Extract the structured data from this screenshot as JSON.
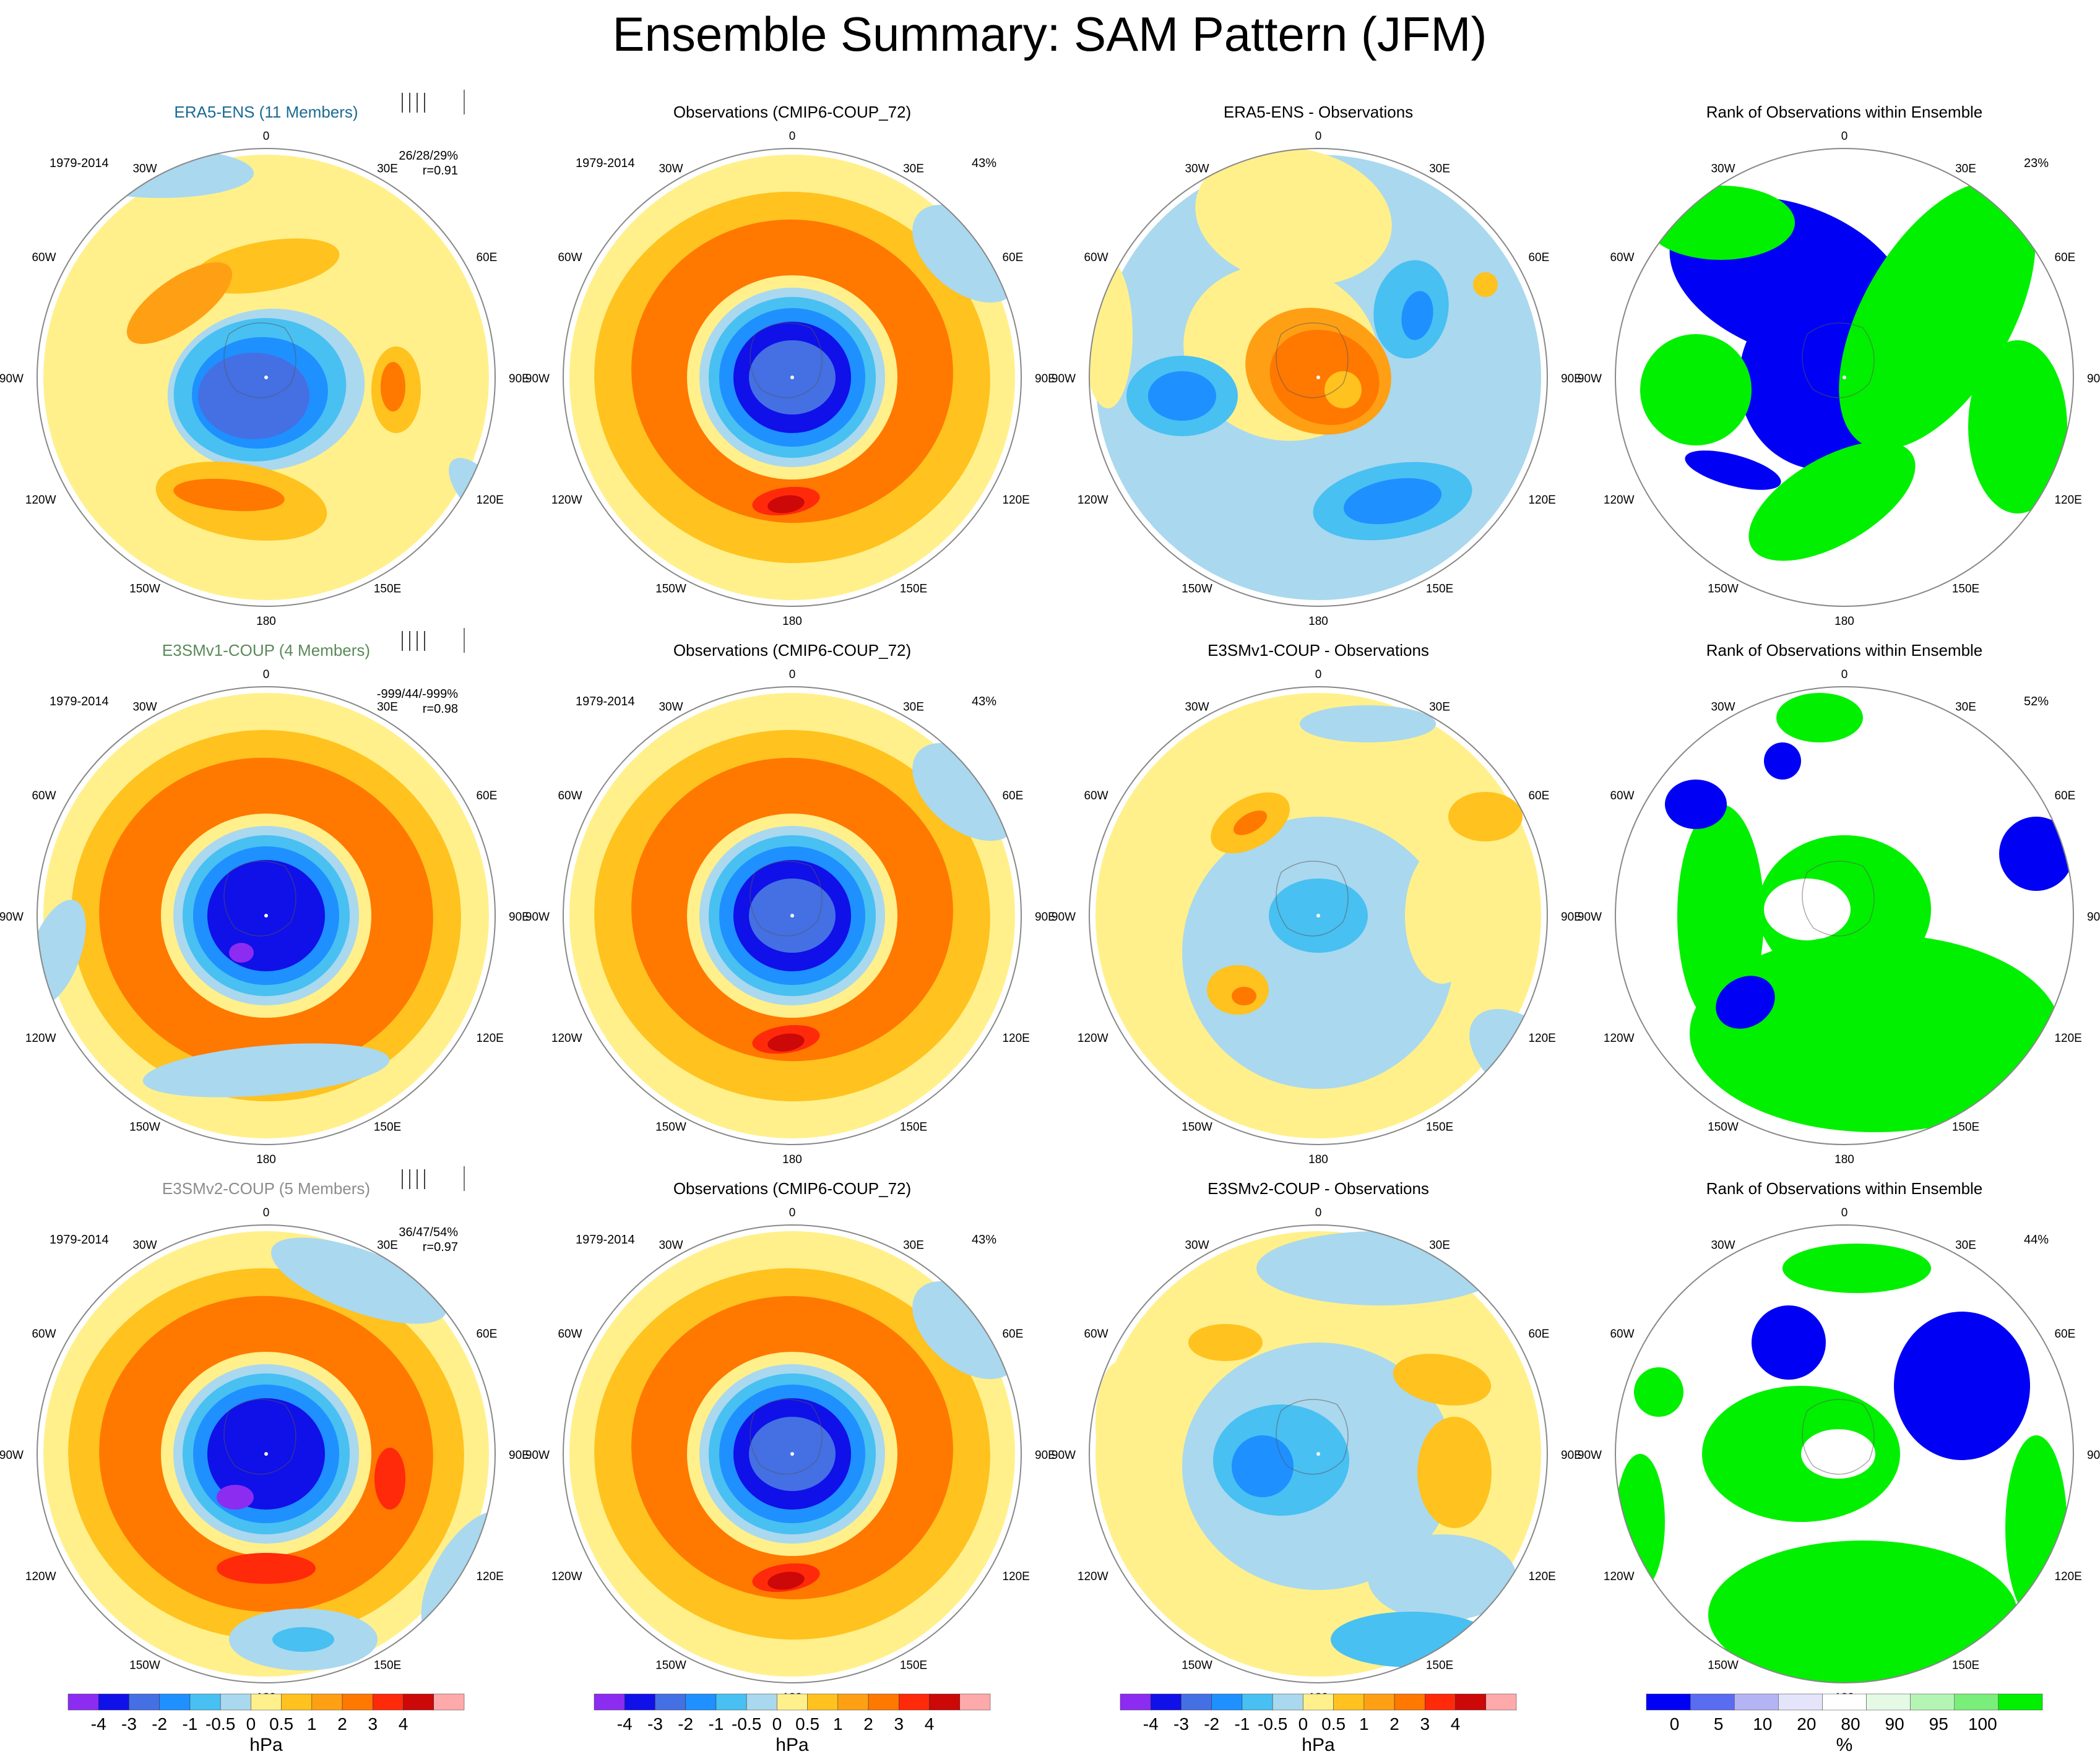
{
  "title": "Ensemble Summary: SAM Pattern (JFM)",
  "lon_labels": [
    "0",
    "30E",
    "60E",
    "90E",
    "120E",
    "150E",
    "180",
    "150W",
    "120W",
    "90W",
    "60W",
    "30W"
  ],
  "colors": {
    "diff": [
      "#8c2cf0",
      "#1010e8",
      "#4470e4",
      "#1e90ff",
      "#48c0f2",
      "#aad8ee",
      "#fff08c",
      "#ffc21e",
      "#ffa014",
      "#ff7800",
      "#ff2a0a",
      "#cc0808",
      "#ffaaaa"
    ],
    "rank": [
      "#0000f5",
      "#5a6cf0",
      "#b4b4f5",
      "#e4e4fa",
      "#ffffff",
      "#e4fae4",
      "#b4f5b4",
      "#7aee7a",
      "#00f000"
    ],
    "left_titles": [
      "#1b6b94",
      "#5a8a5a",
      "#8c8c8c"
    ]
  },
  "rows": [
    {
      "ens": {
        "title": "ERA5-ENS (11 Members)",
        "period": "1979-2014",
        "stats": "26/28/29%",
        "corr": "r=0.91"
      },
      "obs": {
        "title": "Observations (CMIP6-COUP_72)",
        "period": "1979-2014",
        "pct": "43%"
      },
      "diff": {
        "title": "ERA5-ENS - Observations"
      },
      "rank": {
        "title": "Rank of Observations within Ensemble",
        "pct": "23%"
      }
    },
    {
      "ens": {
        "title": "E3SMv1-COUP (4 Members)",
        "period": "1979-2014",
        "stats": "-999/44/-999%",
        "corr": "r=0.98"
      },
      "obs": {
        "title": "Observations (CMIP6-COUP_72)",
        "period": "1979-2014",
        "pct": "43%"
      },
      "diff": {
        "title": "E3SMv1-COUP - Observations"
      },
      "rank": {
        "title": "Rank of Observations within Ensemble",
        "pct": "52%"
      }
    },
    {
      "ens": {
        "title": "E3SMv2-COUP (5 Members)",
        "period": "1979-2014",
        "stats": "36/47/54%",
        "corr": "r=0.97"
      },
      "obs": {
        "title": "Observations (CMIP6-COUP_72)",
        "period": "1979-2014",
        "pct": "43%"
      },
      "diff": {
        "title": "E3SMv2-COUP - Observations"
      },
      "rank": {
        "title": "Rank of Observations within Ensemble",
        "pct": "44%"
      }
    }
  ],
  "colorbars": [
    {
      "unit": "hPa",
      "labels": [
        "-4",
        "-3",
        "-2",
        "-1",
        "-0.5",
        "0",
        "0.5",
        "1",
        "2",
        "3",
        "4"
      ]
    },
    {
      "unit": "hPa",
      "labels": [
        "-4",
        "-3",
        "-2",
        "-1",
        "-0.5",
        "0",
        "0.5",
        "1",
        "2",
        "3",
        "4"
      ]
    },
    {
      "unit": "hPa",
      "labels": [
        "-4",
        "-3",
        "-2",
        "-1",
        "-0.5",
        "0",
        "0.5",
        "1",
        "2",
        "3",
        "4"
      ]
    },
    {
      "unit": "%",
      "labels": [
        "0",
        "5",
        "10",
        "20",
        "80",
        "90",
        "95",
        "100"
      ]
    }
  ]
}
